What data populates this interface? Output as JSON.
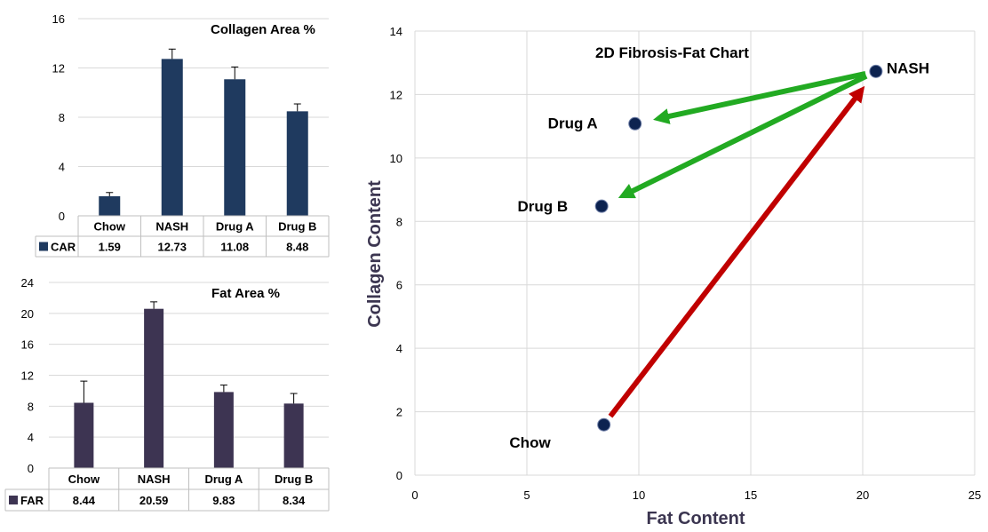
{
  "chart_data": [
    {
      "type": "bar",
      "title": "Collagen Area %",
      "categories": [
        "Chow",
        "NASH",
        "Drug A",
        "Drug B"
      ],
      "series": [
        {
          "name": "CAR",
          "values": [
            1.59,
            12.73,
            11.08,
            8.48
          ],
          "errors": [
            0.3,
            0.8,
            1.0,
            0.6
          ],
          "color": "#1f3a5f"
        }
      ],
      "table_values": [
        "1.59",
        "12.73",
        "11.08",
        "8.48"
      ],
      "ylim": [
        0,
        16
      ],
      "yticks": [
        0,
        4,
        8,
        12,
        16
      ],
      "grid": true
    },
    {
      "type": "bar",
      "title": "Fat Area %",
      "categories": [
        "Chow",
        "NASH",
        "Drug A",
        "Drug B"
      ],
      "series": [
        {
          "name": "FAR",
          "values": [
            8.44,
            20.59,
            9.83,
            8.34
          ],
          "errors": [
            2.8,
            0.9,
            0.9,
            1.3
          ],
          "color": "#3d3452"
        }
      ],
      "table_values": [
        "8.44",
        "20.59",
        "9.83",
        "8.34"
      ],
      "ylim": [
        0,
        24
      ],
      "yticks": [
        0,
        4,
        8,
        12,
        16,
        20,
        24
      ],
      "grid": true
    },
    {
      "type": "scatter",
      "title": "2D Fibrosis-Fat Chart",
      "xlabel": "Fat Content",
      "ylabel": "Collagen Content",
      "xlim": [
        0,
        25
      ],
      "ylim": [
        0,
        14
      ],
      "xticks": [
        0,
        5,
        10,
        15,
        20,
        25
      ],
      "yticks": [
        0,
        2,
        4,
        6,
        8,
        10,
        12,
        14
      ],
      "points": [
        {
          "label": "Chow",
          "x": 8.44,
          "y": 1.59
        },
        {
          "label": "NASH",
          "x": 20.59,
          "y": 12.73
        },
        {
          "label": "Drug A",
          "x": 9.83,
          "y": 11.08
        },
        {
          "label": "Drug B",
          "x": 8.34,
          "y": 8.48
        }
      ],
      "arrows": [
        {
          "from": "Chow",
          "to": "NASH",
          "color": "#c00000"
        },
        {
          "from": "NASH",
          "to": "Drug A",
          "color": "#22aa22"
        },
        {
          "from": "NASH",
          "to": "Drug B",
          "color": "#22aa22"
        }
      ],
      "point_color": "#0d2350",
      "grid": true
    }
  ]
}
